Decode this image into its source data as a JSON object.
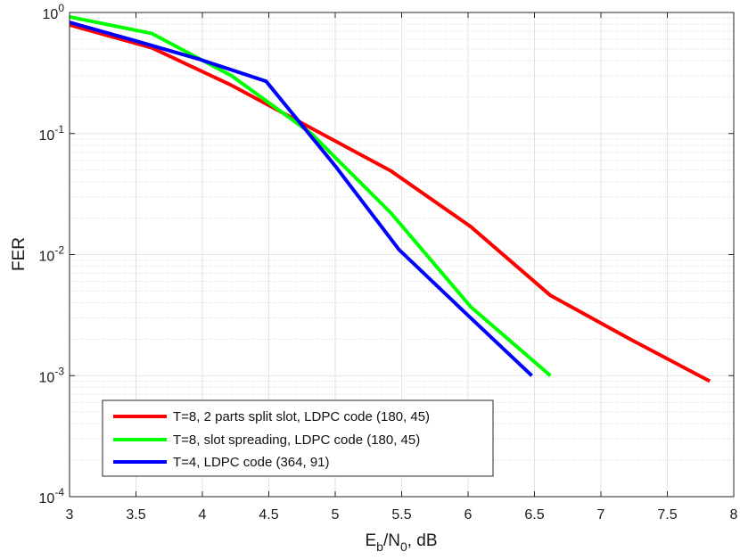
{
  "chart_data": {
    "type": "line",
    "title": "",
    "xlabel": {
      "main": "E",
      "sub1": "b",
      "mid": "/N",
      "sub2": "0",
      "tail": ", dB"
    },
    "ylabel": "FER",
    "xlim": [
      3,
      8
    ],
    "ylim": [
      0.0001,
      1
    ],
    "yscale": "log",
    "grid": true,
    "x_ticks": [
      3,
      3.5,
      4,
      4.5,
      5,
      5.5,
      6,
      6.5,
      7,
      7.5,
      8
    ],
    "x_tick_labels": [
      "3",
      "3.5",
      "4",
      "4.5",
      "5",
      "5.5",
      "6",
      "6.5",
      "7",
      "7.5",
      "8"
    ],
    "y_ticks": [
      {
        "value": 1,
        "base": "10",
        "exp": "0"
      },
      {
        "value": 0.1,
        "base": "10",
        "exp": "-1"
      },
      {
        "value": 0.01,
        "base": "10",
        "exp": "-2"
      },
      {
        "value": 0.001,
        "base": "10",
        "exp": "-3"
      },
      {
        "value": 0.0001,
        "base": "10",
        "exp": "-4"
      }
    ],
    "legend_position": "bottom-left",
    "series": [
      {
        "name": "T=8, 2 parts split slot, LDPC code (180, 45)",
        "color": "#ff0000",
        "x": [
          3.0,
          3.62,
          4.22,
          5.42,
          6.02,
          6.62,
          7.22,
          7.82
        ],
        "y": [
          0.79,
          0.51,
          0.25,
          0.049,
          0.017,
          0.0046,
          0.002,
          0.0009
        ]
      },
      {
        "name": "T=8, slot spreading, LDPC code (180, 45)",
        "color": "#00ff00",
        "x": [
          3.0,
          3.62,
          4.22,
          4.82,
          5.42,
          6.02,
          6.62
        ],
        "y": [
          0.92,
          0.67,
          0.3,
          0.1,
          0.022,
          0.0037,
          0.001
        ]
      },
      {
        "name": "T=4, LDPC code (364, 91)",
        "color": "#0000ff",
        "x": [
          3.0,
          3.48,
          3.98,
          4.48,
          5.0,
          5.48,
          5.98,
          6.48
        ],
        "y": [
          0.83,
          0.59,
          0.41,
          0.27,
          0.054,
          0.011,
          0.0033,
          0.001
        ]
      }
    ]
  }
}
